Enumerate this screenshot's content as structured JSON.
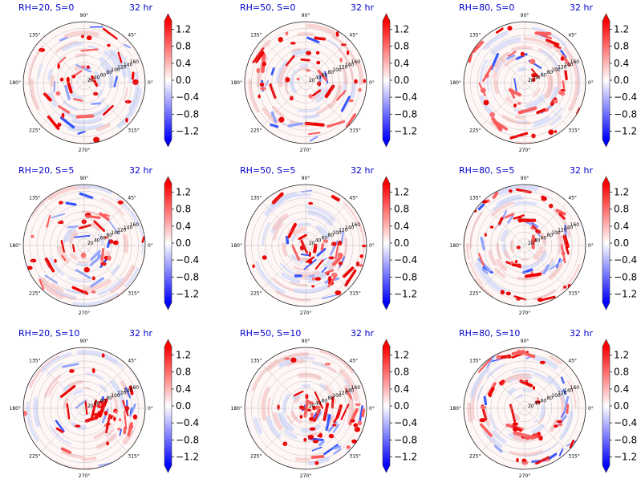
{
  "figure": {
    "time_label": "32 hr",
    "title_color": "#0000cc",
    "colormap": {
      "name": "bwr",
      "low": "#0000ff",
      "mid": "#ffffff",
      "high": "#ff0000"
    }
  },
  "chart_data": [
    {
      "type": "heatmap",
      "projection": "polar",
      "title": "RH=20, S=0",
      "time": "32 hr",
      "angle_ticks": [
        "0°",
        "45°",
        "90°",
        "135°",
        "180°",
        "225°",
        "270°",
        "315°"
      ],
      "radial_ticks": [
        20,
        40,
        60,
        80,
        100,
        120,
        140,
        160
      ],
      "rmax": 180,
      "vlim": [
        -1.4,
        1.4
      ],
      "colorbar_ticks": [
        1.2,
        0.8,
        0.4,
        0.0,
        -0.4,
        -0.8,
        -1.2
      ],
      "colorbar_extend": "both",
      "pattern": "scattered",
      "red_density": 0.6,
      "blue_density": 0.35
    },
    {
      "type": "heatmap",
      "projection": "polar",
      "title": "RH=50, S=0",
      "time": "32 hr",
      "angle_ticks": [
        "0°",
        "45°",
        "90°",
        "135°",
        "180°",
        "225°",
        "270°",
        "315°"
      ],
      "radial_ticks": [
        20,
        40,
        60,
        80,
        100,
        120,
        140,
        160
      ],
      "rmax": 180,
      "vlim": [
        -1.4,
        1.4
      ],
      "colorbar_ticks": [
        1.2,
        0.8,
        0.4,
        0.0,
        -0.4,
        -0.8,
        -1.2
      ],
      "colorbar_extend": "both",
      "pattern": "scattered",
      "red_density": 0.75,
      "blue_density": 0.35
    },
    {
      "type": "heatmap",
      "projection": "polar",
      "title": "RH=80, S=0",
      "time": "32 hr",
      "angle_ticks": [
        "0°",
        "45°",
        "90°",
        "135°",
        "180°",
        "225°",
        "270°",
        "315°"
      ],
      "radial_ticks": [
        20,
        40,
        60,
        80,
        100,
        120,
        140,
        160
      ],
      "rmax": 180,
      "vlim": [
        -1.4,
        1.4
      ],
      "colorbar_ticks": [
        1.2,
        0.8,
        0.4,
        0.0,
        -0.4,
        -0.8,
        -1.2
      ],
      "colorbar_extend": "both",
      "pattern": "spiral_core",
      "red_density": 0.85,
      "blue_density": 0.3
    },
    {
      "type": "heatmap",
      "projection": "polar",
      "title": "RH=20, S=5",
      "time": "32 hr",
      "angle_ticks": [
        "0°",
        "45°",
        "90°",
        "135°",
        "180°",
        "225°",
        "270°",
        "315°"
      ],
      "radial_ticks": [
        20,
        40,
        60,
        80,
        100,
        120,
        140,
        160
      ],
      "rmax": 180,
      "vlim": [
        -1.4,
        1.4
      ],
      "colorbar_ticks": [
        1.2,
        0.8,
        0.4,
        0.0,
        -0.4,
        -0.8,
        -1.2
      ],
      "colorbar_extend": "both",
      "pattern": "scattered",
      "red_density": 0.65,
      "blue_density": 0.45
    },
    {
      "type": "heatmap",
      "projection": "polar",
      "title": "RH=50, S=5",
      "time": "32 hr",
      "angle_ticks": [
        "0°",
        "45°",
        "90°",
        "135°",
        "180°",
        "225°",
        "270°",
        "315°"
      ],
      "radial_ticks": [
        20,
        40,
        60,
        80,
        100,
        120,
        140,
        160
      ],
      "rmax": 180,
      "vlim": [
        -1.4,
        1.4
      ],
      "colorbar_ticks": [
        1.2,
        0.8,
        0.4,
        0.0,
        -0.4,
        -0.8,
        -1.2
      ],
      "colorbar_extend": "both",
      "pattern": "southeast_bands",
      "red_density": 0.8,
      "blue_density": 0.5
    },
    {
      "type": "heatmap",
      "projection": "polar",
      "title": "RH=80, S=5",
      "time": "32 hr",
      "angle_ticks": [
        "0°",
        "45°",
        "90°",
        "135°",
        "180°",
        "225°",
        "270°",
        "315°"
      ],
      "radial_ticks": [
        20,
        40,
        60,
        80,
        100,
        120,
        140,
        160
      ],
      "rmax": 180,
      "vlim": [
        -1.4,
        1.4
      ],
      "colorbar_ticks": [
        1.2,
        0.8,
        0.4,
        0.0,
        -0.4,
        -0.8,
        -1.2
      ],
      "colorbar_extend": "both",
      "pattern": "spiral_core",
      "red_density": 0.8,
      "blue_density": 0.5
    },
    {
      "type": "heatmap",
      "projection": "polar",
      "title": "RH=20, S=10",
      "time": "32 hr",
      "angle_ticks": [
        "0°",
        "45°",
        "90°",
        "135°",
        "180°",
        "225°",
        "270°",
        "315°"
      ],
      "radial_ticks": [
        20,
        40,
        60,
        80,
        100,
        120,
        140,
        160
      ],
      "rmax": 180,
      "vlim": [
        -1.4,
        1.4
      ],
      "colorbar_ticks": [
        1.2,
        0.8,
        0.4,
        0.0,
        -0.4,
        -0.8,
        -1.2
      ],
      "colorbar_extend": "both",
      "pattern": "east_cluster",
      "red_density": 0.7,
      "blue_density": 0.35
    },
    {
      "type": "heatmap",
      "projection": "polar",
      "title": "RH=50, S=10",
      "time": "32 hr",
      "angle_ticks": [
        "0°",
        "45°",
        "90°",
        "135°",
        "180°",
        "225°",
        "270°",
        "315°"
      ],
      "radial_ticks": [
        20,
        40,
        60,
        80,
        100,
        120,
        140,
        160
      ],
      "rmax": 180,
      "vlim": [
        -1.4,
        1.4
      ],
      "colorbar_ticks": [
        1.2,
        0.8,
        0.4,
        0.0,
        -0.4,
        -0.8,
        -1.2
      ],
      "colorbar_extend": "both",
      "pattern": "southeast_bands",
      "red_density": 0.85,
      "blue_density": 0.45
    },
    {
      "type": "heatmap",
      "projection": "polar",
      "title": "RH=80, S=10",
      "time": "32 hr",
      "angle_ticks": [
        "0°",
        "45°",
        "90°",
        "135°",
        "180°",
        "225°",
        "270°",
        "315°"
      ],
      "radial_ticks": [
        20,
        40,
        60,
        80,
        100,
        120,
        140,
        160
      ],
      "rmax": 180,
      "vlim": [
        -1.4,
        1.4
      ],
      "colorbar_ticks": [
        1.2,
        0.8,
        0.4,
        0.0,
        -0.4,
        -0.8,
        -1.2
      ],
      "colorbar_extend": "both",
      "pattern": "spiral_core",
      "red_density": 0.9,
      "blue_density": 0.5
    }
  ]
}
